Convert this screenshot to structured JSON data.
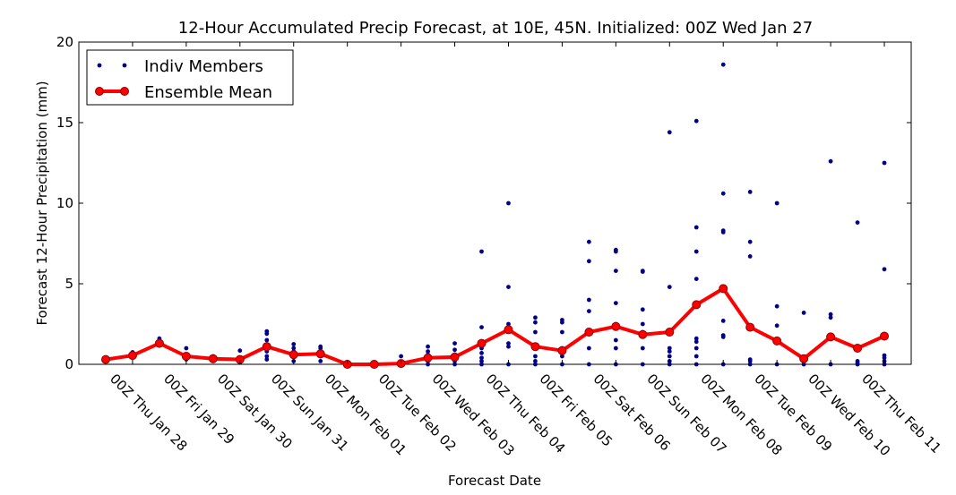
{
  "chart_data": {
    "type": "line",
    "title": "12-Hour Accumulated Precip Forecast, at 10E, 45N.  Initialized: 00Z Wed Jan 27",
    "xlabel": "Forecast Date",
    "ylabel": "Forecast 12-Hour Precipitation (mm)",
    "ylim": [
      0,
      20
    ],
    "yticks": [
      "0",
      "5",
      "10",
      "15",
      "20"
    ],
    "xticks": [
      "00Z Thu Jan 28",
      "00Z Fri Jan 29",
      "00Z Sat Jan 30",
      "00Z Sun Jan 31",
      "00Z Mon Feb 01",
      "00Z Tue Feb 02",
      "00Z Wed Feb 03",
      "00Z Thu Feb 04",
      "00Z Fri Feb 05",
      "00Z Sat Feb 06",
      "00Z Sun Feb 07",
      "00Z Mon Feb 08",
      "00Z Tue Feb 09",
      "00Z Wed Feb 10",
      "00Z Thu Feb 11"
    ],
    "xtick_positions_hours": [
      24,
      48,
      72,
      96,
      120,
      144,
      168,
      192,
      216,
      240,
      264,
      288,
      312,
      336,
      360
    ],
    "x_hours": [
      12,
      24,
      36,
      48,
      60,
      72,
      84,
      96,
      108,
      120,
      132,
      144,
      156,
      168,
      180,
      192,
      204,
      216,
      228,
      240,
      252,
      264,
      276,
      288,
      300,
      312,
      324,
      336,
      348,
      360
    ],
    "grid": false,
    "legend": "top-left",
    "series": [
      {
        "name": "Ensemble Mean",
        "color": "#ff0000",
        "values": [
          0.3,
          0.55,
          1.3,
          0.5,
          0.35,
          0.3,
          1.1,
          0.6,
          0.65,
          0.0,
          0.0,
          0.05,
          0.4,
          0.45,
          1.3,
          2.15,
          1.1,
          0.85,
          2.0,
          2.35,
          1.85,
          2.0,
          3.7,
          4.7,
          2.3,
          1.45,
          0.35,
          1.7,
          1.0,
          1.75
        ]
      },
      {
        "name": "Indiv Members",
        "color": "#00008b",
        "values": [
          [
            0.2,
            0.35
          ],
          [
            0.4,
            0.6,
            0.75
          ],
          [
            1.2,
            1.5,
            1.6
          ],
          [
            0.3,
            0.6,
            1.0
          ],
          [
            0.2,
            0.4,
            0.5
          ],
          [
            0.1,
            0.4,
            0.85
          ],
          [
            0.3,
            0.5,
            0.8,
            1.1,
            1.5,
            1.9,
            2.05
          ],
          [
            0.2,
            0.5,
            0.8,
            1.0,
            1.25
          ],
          [
            0.2,
            0.5,
            0.8,
            1.0,
            1.1
          ],
          [
            0.0,
            0.05
          ],
          [
            0.0,
            0.05
          ],
          [
            0.0,
            0.05,
            0.5
          ],
          [
            0.0,
            0.2,
            0.6,
            0.8,
            1.1
          ],
          [
            0.0,
            0.2,
            0.6,
            0.9,
            1.3
          ],
          [
            0.0,
            0.2,
            0.4,
            0.7,
            1.0,
            2.3,
            7.0
          ],
          [
            0.0,
            1.1,
            1.3,
            2.5,
            4.8,
            10.0
          ],
          [
            0.0,
            0.2,
            0.5,
            1.0,
            2.0,
            2.6,
            2.9
          ],
          [
            0.0,
            0.5,
            1.0,
            2.0,
            2.6,
            2.75
          ],
          [
            0.0,
            1.0,
            2.0,
            3.3,
            4.0,
            6.4,
            7.6
          ],
          [
            0.0,
            1.0,
            1.5,
            2.5,
            3.8,
            5.8,
            7.0,
            7.1
          ],
          [
            0.0,
            1.0,
            2.0,
            2.5,
            3.4,
            5.8,
            5.75
          ],
          [
            0.0,
            0.2,
            0.5,
            0.8,
            1.0,
            2.0,
            4.8,
            14.4
          ],
          [
            0.0,
            0.5,
            1.0,
            1.4,
            1.6,
            3.6,
            5.3,
            7.0,
            8.5,
            15.1
          ],
          [
            0.0,
            1.7,
            1.8,
            2.7,
            8.2,
            8.3,
            10.6,
            18.6
          ],
          [
            0.0,
            0.2,
            0.3,
            2.3,
            6.7,
            7.6,
            10.7
          ],
          [
            0.0,
            1.4,
            2.4,
            3.6,
            10.0
          ],
          [
            0.0,
            0.3,
            3.2
          ],
          [
            0.0,
            1.6,
            2.9,
            3.1,
            12.6
          ],
          [
            0.0,
            0.1,
            0.2,
            1.0,
            8.8
          ],
          [
            0.0,
            0.2,
            0.4,
            0.55,
            1.7,
            5.9,
            12.5
          ]
        ]
      }
    ]
  }
}
